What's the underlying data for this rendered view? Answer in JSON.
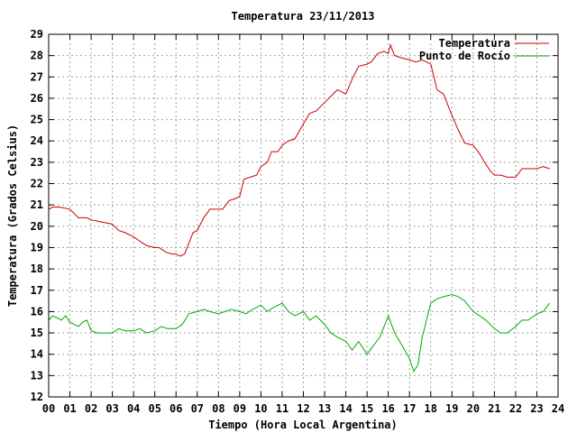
{
  "chart_data": {
    "type": "line",
    "title": "Temperatura 23/11/2013",
    "xlabel": "Tiempo (Hora Local Argentina)",
    "ylabel": "Temperatura (Grados Celsius)",
    "xlim": [
      0,
      24
    ],
    "ylim": [
      12,
      29
    ],
    "grid": true,
    "legend_position": "top-right",
    "x_ticks": [
      "00",
      "01",
      "02",
      "03",
      "04",
      "05",
      "06",
      "07",
      "08",
      "09",
      "10",
      "11",
      "12",
      "13",
      "14",
      "15",
      "16",
      "17",
      "18",
      "19",
      "20",
      "21",
      "22",
      "23",
      "24"
    ],
    "y_ticks": [
      "12",
      "13",
      "14",
      "15",
      "16",
      "17",
      "18",
      "19",
      "20",
      "21",
      "22",
      "23",
      "24",
      "25",
      "26",
      "27",
      "28",
      "29"
    ],
    "series": [
      {
        "name": "Temperatura",
        "color": "#cc0000",
        "x": [
          0.0,
          0.2,
          0.5,
          1.0,
          1.4,
          1.8,
          2.0,
          2.5,
          3.0,
          3.3,
          3.6,
          4.0,
          4.3,
          4.6,
          5.0,
          5.2,
          5.5,
          5.8,
          6.0,
          6.2,
          6.4,
          6.8,
          7.0,
          7.3,
          7.6,
          8.0,
          8.2,
          8.5,
          8.8,
          9.0,
          9.2,
          9.5,
          9.8,
          10.0,
          10.3,
          10.5,
          10.8,
          11.0,
          11.3,
          11.6,
          12.0,
          12.3,
          12.6,
          13.0,
          13.3,
          13.6,
          13.8,
          14.0,
          14.3,
          14.6,
          15.0,
          15.2,
          15.5,
          15.8,
          16.0,
          16.1,
          16.3,
          16.6,
          17.0,
          17.3,
          17.6,
          18.0,
          18.3,
          18.6,
          19.0,
          19.3,
          19.6,
          20.0,
          20.3,
          20.6,
          20.8,
          21.0,
          21.3,
          21.6,
          22.0,
          22.3,
          22.6,
          23.0,
          23.3,
          23.6
        ],
        "y": [
          20.8,
          20.9,
          20.9,
          20.8,
          20.4,
          20.4,
          20.3,
          20.2,
          20.1,
          19.8,
          19.7,
          19.5,
          19.3,
          19.1,
          19.0,
          19.0,
          18.8,
          18.7,
          18.7,
          18.6,
          18.7,
          19.7,
          19.8,
          20.4,
          20.8,
          20.8,
          20.8,
          21.2,
          21.3,
          21.4,
          22.2,
          22.3,
          22.4,
          22.8,
          23.0,
          23.5,
          23.5,
          23.8,
          24.0,
          24.1,
          24.8,
          25.3,
          25.4,
          25.8,
          26.1,
          26.4,
          26.3,
          26.2,
          26.9,
          27.5,
          27.6,
          27.7,
          28.1,
          28.2,
          28.1,
          28.5,
          28.0,
          27.9,
          27.8,
          27.7,
          27.8,
          27.6,
          26.4,
          26.2,
          25.2,
          24.5,
          23.9,
          23.8,
          23.4,
          22.9,
          22.6,
          22.4,
          22.4,
          22.3,
          22.3,
          22.7,
          22.7,
          22.7,
          22.8,
          22.7
        ]
      },
      {
        "name": "Punto de Rocío",
        "color": "#00aa00",
        "x": [
          0.0,
          0.2,
          0.4,
          0.6,
          0.8,
          1.0,
          1.2,
          1.4,
          1.6,
          1.8,
          2.0,
          2.3,
          2.6,
          3.0,
          3.3,
          3.6,
          4.0,
          4.3,
          4.6,
          5.0,
          5.3,
          5.6,
          6.0,
          6.3,
          6.6,
          7.0,
          7.3,
          7.6,
          8.0,
          8.3,
          8.6,
          9.0,
          9.3,
          9.6,
          10.0,
          10.3,
          10.6,
          11.0,
          11.3,
          11.6,
          12.0,
          12.3,
          12.6,
          13.0,
          13.3,
          13.6,
          14.0,
          14.3,
          14.6,
          15.0,
          15.3,
          15.6,
          16.0,
          16.3,
          16.6,
          17.0,
          17.2,
          17.4,
          17.6,
          18.0,
          18.3,
          18.6,
          19.0,
          19.3,
          19.6,
          20.0,
          20.3,
          20.6,
          21.0,
          21.3,
          21.6,
          22.0,
          22.3,
          22.6,
          23.0,
          23.3,
          23.6
        ],
        "y": [
          15.6,
          15.8,
          15.7,
          15.6,
          15.8,
          15.5,
          15.4,
          15.3,
          15.5,
          15.6,
          15.1,
          15.0,
          15.0,
          15.0,
          15.2,
          15.1,
          15.1,
          15.2,
          15.0,
          15.1,
          15.3,
          15.2,
          15.2,
          15.4,
          15.9,
          16.0,
          16.1,
          16.0,
          15.9,
          16.0,
          16.1,
          16.0,
          15.9,
          16.1,
          16.3,
          16.0,
          16.2,
          16.4,
          16.0,
          15.8,
          16.0,
          15.6,
          15.8,
          15.4,
          15.0,
          14.8,
          14.6,
          14.2,
          14.6,
          14.0,
          14.4,
          14.8,
          15.8,
          15.0,
          14.5,
          13.8,
          13.2,
          13.5,
          14.8,
          16.4,
          16.6,
          16.7,
          16.8,
          16.7,
          16.5,
          16.0,
          15.8,
          15.6,
          15.2,
          15.0,
          15.0,
          15.3,
          15.6,
          15.6,
          15.9,
          16.0,
          16.4
        ]
      }
    ]
  }
}
